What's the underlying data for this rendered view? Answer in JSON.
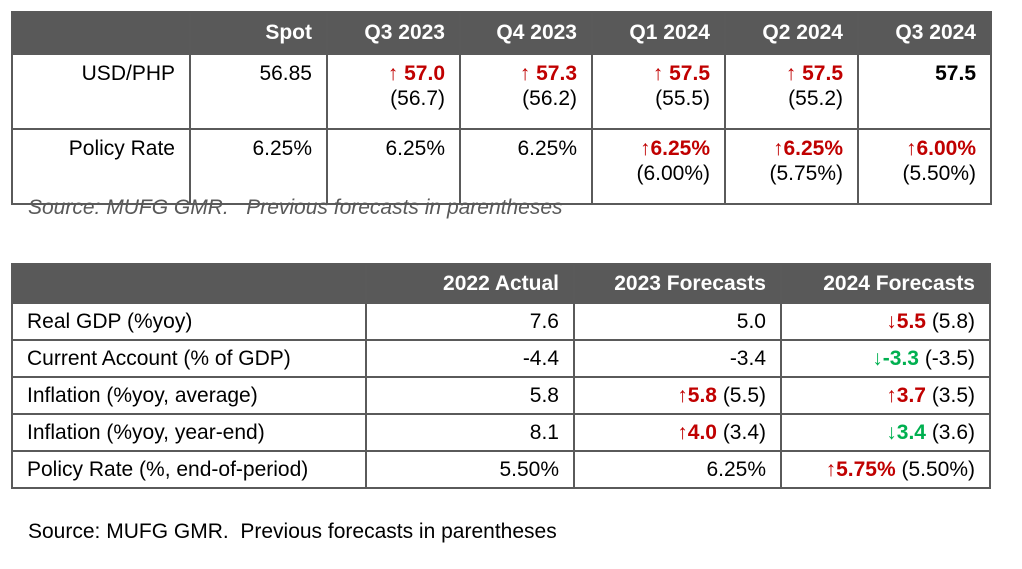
{
  "table1": {
    "headers": [
      "",
      "Spot",
      "Q3 2023",
      "Q4 2023",
      "Q1 2024",
      "Q2 2024",
      "Q3 2024"
    ],
    "rows": [
      {
        "label": "USD/PHP",
        "spot": "56.85",
        "cells": [
          {
            "arrow": "↑ ",
            "value": "57.0",
            "prev": "(56.7)",
            "style": "red"
          },
          {
            "arrow": "↑ ",
            "value": "57.3",
            "prev": "(56.2)",
            "style": "red"
          },
          {
            "arrow": "↑ ",
            "value": "57.5",
            "prev": "(55.5)",
            "style": "red"
          },
          {
            "arrow": "↑ ",
            "value": "57.5",
            "prev": "(55.2)",
            "style": "red"
          },
          {
            "arrow": "",
            "value": "57.5",
            "prev": "",
            "style": "blk"
          }
        ]
      },
      {
        "label": "Policy Rate",
        "spot": "6.25%",
        "cells": [
          {
            "arrow": "",
            "value": "6.25%",
            "prev": "",
            "style": "plain"
          },
          {
            "arrow": "",
            "value": "6.25%",
            "prev": "",
            "style": "plain"
          },
          {
            "arrow": "↑",
            "value": "6.25%",
            "prev": "(6.00%)",
            "style": "red"
          },
          {
            "arrow": "↑",
            "value": "6.25%",
            "prev": "(5.75%)",
            "style": "red"
          },
          {
            "arrow": "↑",
            "value": "6.00%",
            "prev": "(5.50%)",
            "style": "red"
          }
        ]
      }
    ],
    "source": "Source: MUFG GMR.   Previous forecasts in parentheses"
  },
  "table2": {
    "headers": [
      "",
      "2022 Actual",
      "2023 Forecasts",
      "2024 Forecasts"
    ],
    "rows": [
      {
        "label": "Real GDP (%yoy)",
        "actual": "7.6",
        "f2023": {
          "arrow": "",
          "value": "5.0",
          "prev": "",
          "style": "plain"
        },
        "f2024": {
          "arrow": "↓",
          "value": "5.5",
          "prev": " (5.8)",
          "style": "red"
        }
      },
      {
        "label": "Current Account (% of GDP)",
        "actual": "-4.4",
        "f2023": {
          "arrow": "",
          "value": "-3.4",
          "prev": "",
          "style": "plain"
        },
        "f2024": {
          "arrow": "↓",
          "value": "-3.3",
          "prev": " (-3.5)",
          "style": "green"
        }
      },
      {
        "label": "Inflation (%yoy, average)",
        "actual": "5.8",
        "f2023": {
          "arrow": "↑",
          "value": "5.8",
          "prev": " (5.5)",
          "style": "red"
        },
        "f2024": {
          "arrow": "↑",
          "value": "3.7",
          "prev": " (3.5)",
          "style": "red"
        }
      },
      {
        "label": "Inflation (%yoy, year-end)",
        "actual": "8.1",
        "f2023": {
          "arrow": "↑",
          "value": "4.0",
          "prev": " (3.4)",
          "style": "red"
        },
        "f2024": {
          "arrow": "↓",
          "value": "3.4",
          "prev": " (3.6)",
          "style": "green"
        }
      },
      {
        "label": "Policy Rate (%, end-of-period)",
        "actual": "5.50%",
        "f2023": {
          "arrow": "",
          "value": "6.25%",
          "prev": "",
          "style": "plain"
        },
        "f2024": {
          "arrow": "↑",
          "value": "5.75%",
          "prev": " (5.50%)",
          "style": "red"
        }
      }
    ],
    "source": "Source: MUFG GMR.  Previous forecasts in parentheses"
  },
  "colors": {
    "header_bg": "#595959",
    "up_red": "#c00000",
    "down_green": "#00b050"
  }
}
